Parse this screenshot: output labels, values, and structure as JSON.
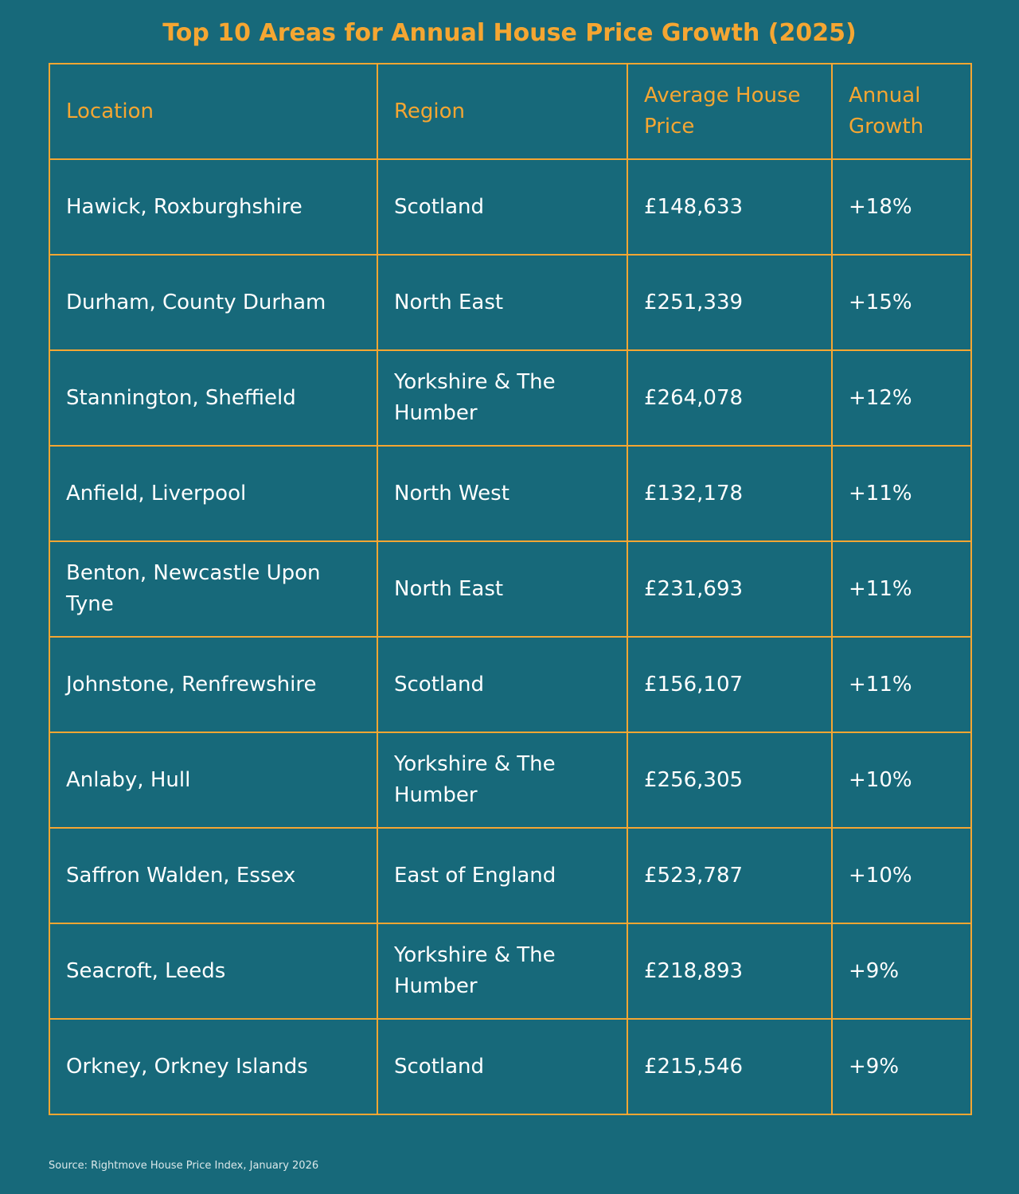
{
  "title": "Top 10 Areas for Annual House Price Growth (2025)",
  "chart_data": {
    "type": "table",
    "title": "Top 10 Areas for Annual House Price Growth (2025)",
    "columns": [
      "Location",
      "Region",
      "Average House Price",
      "Annual Growth"
    ],
    "rows": [
      [
        "Hawick, Roxburghshire",
        "Scotland",
        "£148,633",
        "+18%"
      ],
      [
        "Durham, County Durham",
        "North East",
        "£251,339",
        "+15%"
      ],
      [
        "Stannington, Sheffield",
        "Yorkshire & The Humber",
        "£264,078",
        "+12%"
      ],
      [
        "Anfield, Liverpool",
        "North West",
        "£132,178",
        "+11%"
      ],
      [
        "Benton, Newcastle Upon Tyne",
        "North East",
        "£231,693",
        "+11%"
      ],
      [
        "Johnstone, Renfrewshire",
        "Scotland",
        "£156,107",
        "+11%"
      ],
      [
        "Anlaby, Hull",
        "Yorkshire & The Humber",
        "£256,305",
        "+10%"
      ],
      [
        "Saffron Walden, Essex",
        "East of England",
        "£523,787",
        "+10%"
      ],
      [
        "Seacroft, Leeds",
        "Yorkshire & The Humber",
        "£218,893",
        "+9%"
      ],
      [
        "Orkney, Orkney Islands",
        "Scotland",
        "£215,546",
        "+9%"
      ]
    ]
  },
  "source": "Source: Rightmove House Price Index, January 2026",
  "colors": {
    "background": "#17697a",
    "accent": "#f5a632",
    "text": "#ffffff"
  }
}
